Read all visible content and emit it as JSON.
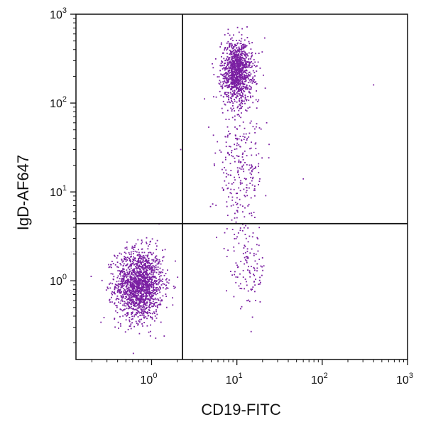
{
  "chart_data": {
    "type": "scatter",
    "title": "",
    "xlabel": "CD19-FITC",
    "ylabel": "IgD-AF647",
    "xscale": "log",
    "yscale": "log",
    "xlim": [
      0.13,
      1000
    ],
    "ylim": [
      0.13,
      1000
    ],
    "x_ticks": [
      {
        "value": 1,
        "base": "10",
        "exp": "0"
      },
      {
        "value": 10,
        "base": "10",
        "exp": "1"
      },
      {
        "value": 100,
        "base": "10",
        "exp": "2"
      },
      {
        "value": 1000,
        "base": "10",
        "exp": "3"
      }
    ],
    "y_ticks": [
      {
        "value": 1,
        "base": "10",
        "exp": "0"
      },
      {
        "value": 10,
        "base": "10",
        "exp": "1"
      },
      {
        "value": 100,
        "base": "10",
        "exp": "2"
      },
      {
        "value": 1000,
        "base": "10",
        "exp": "3"
      }
    ],
    "quadrant_gates": {
      "x": 2.3,
      "y": 4.4
    },
    "point_color": "#7a1fa2",
    "populations": [
      {
        "center_x": 0.72,
        "center_y": 0.9,
        "spread_log_x": 0.14,
        "spread_log_y": 0.2,
        "count": 1600
      },
      {
        "center_x": 10,
        "center_y": 230,
        "spread_log_x": 0.09,
        "spread_log_y": 0.17,
        "count": 1100
      },
      {
        "center_x": 11,
        "center_y": 20,
        "spread_log_x": 0.14,
        "spread_log_y": 0.45,
        "count": 320
      },
      {
        "center_x": 14,
        "center_y": 1.3,
        "spread_log_x": 0.1,
        "spread_log_y": 0.2,
        "count": 100
      }
    ],
    "outliers": [
      {
        "x": 400,
        "y": 160
      },
      {
        "x": 60,
        "y": 14
      },
      {
        "x": 2.2,
        "y": 30
      }
    ],
    "grid": false
  }
}
